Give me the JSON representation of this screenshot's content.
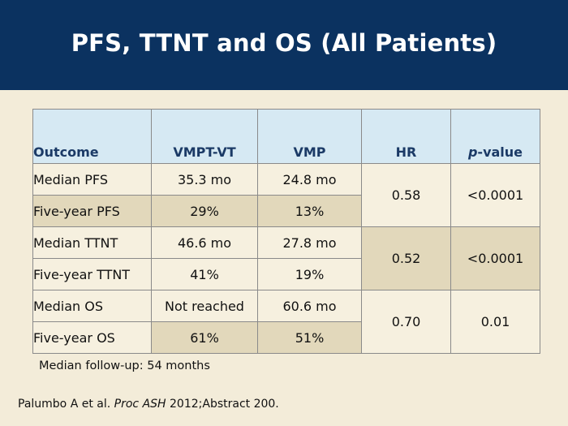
{
  "slide": {
    "title": "PFS, TTNT and OS (All Patients)"
  },
  "table": {
    "headers": {
      "outcome": "Outcome",
      "vmpt_vt": "VMPT-VT",
      "vmp": "VMP",
      "hr": "HR",
      "p_prefix": "p",
      "p_suffix": "-value"
    },
    "groups": [
      {
        "rows": [
          {
            "outcome": "Median PFS",
            "vmpt_vt": "35.3 mo",
            "vmp": "24.8 mo"
          },
          {
            "outcome": "Five-year PFS",
            "vmpt_vt": "29%",
            "vmp": "13%"
          }
        ],
        "hr": "0.58",
        "p_value": "<0.0001"
      },
      {
        "rows": [
          {
            "outcome": "Median TTNT",
            "vmpt_vt": "46.6 mo",
            "vmp": "27.8 mo"
          },
          {
            "outcome": "Five-year TTNT",
            "vmpt_vt": "41%",
            "vmp": "19%"
          }
        ],
        "hr": "0.52",
        "p_value": "<0.0001"
      },
      {
        "rows": [
          {
            "outcome": "Median OS",
            "vmpt_vt": "Not reached",
            "vmp": "60.6 mo"
          },
          {
            "outcome": "Five-year OS",
            "vmpt_vt": "61%",
            "vmp": "51%"
          }
        ],
        "hr": "0.70",
        "p_value": "0.01"
      }
    ]
  },
  "footnote": {
    "followup": "Median follow-up: 54 months"
  },
  "citation": {
    "authors": "Palumbo A et al.",
    "journal": "Proc ASH",
    "details": "2012;Abstract 200."
  },
  "colors": {
    "header_bg": "#0b3260",
    "table_header_bg": "#d6e9f3",
    "row_light": "#f6f0df",
    "row_dark": "#e2d8bb",
    "page_bg": "#f3ecd9"
  }
}
